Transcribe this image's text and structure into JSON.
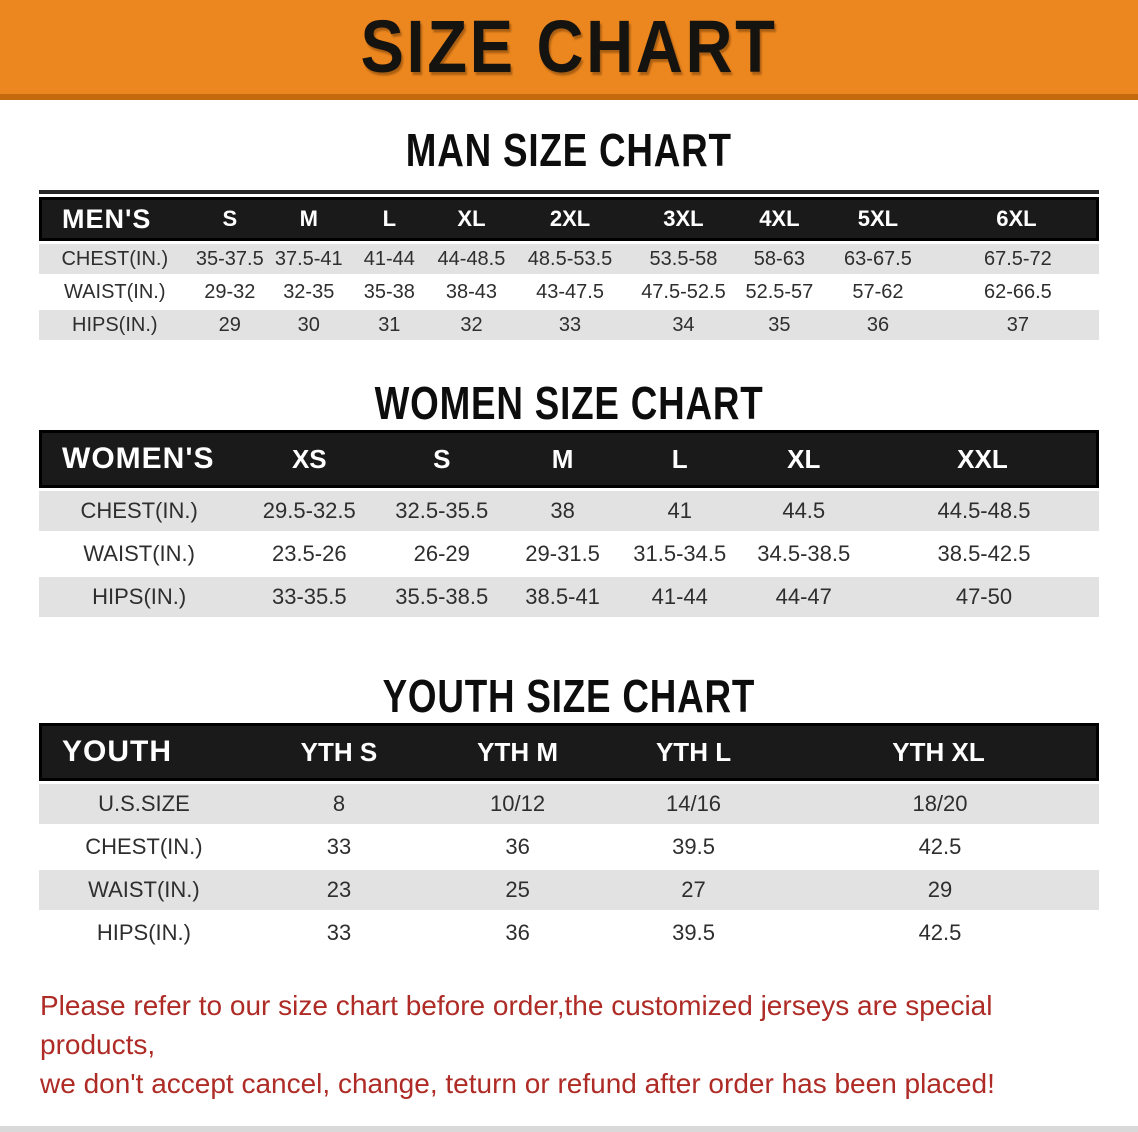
{
  "banner": {
    "title": "SIZE CHART"
  },
  "colors": {
    "banner_orange": "#EC861E",
    "banner_border": "#C4690D",
    "table_header_black": "#1A1A1A",
    "row_stripe_gray": "#E2E2E2",
    "disclaimer_red": "#AE2B26"
  },
  "sections": {
    "men": {
      "heading": "MAN SIZE CHART",
      "table": {
        "header": [
          "MEN'S",
          "S",
          "M",
          "L",
          "XL",
          "2XL",
          "3XL",
          "4XL",
          "5XL",
          "6XL"
        ],
        "rows": [
          {
            "label": "CHEST(IN.)",
            "values": [
              "35-37.5",
              "37.5-41",
              "41-44",
              "44-48.5",
              "48.5-53.5",
              "53.5-58",
              "58-63",
              "63-67.5",
              "67.5-72"
            ]
          },
          {
            "label": "WAIST(IN.)",
            "values": [
              "29-32",
              "32-35",
              "35-38",
              "38-43",
              "43-47.5",
              "47.5-52.5",
              "52.5-57",
              "57-62",
              "62-66.5"
            ]
          },
          {
            "label": "HIPS(IN.)",
            "values": [
              "29",
              "30",
              "31",
              "32",
              "33",
              "34",
              "35",
              "36",
              "37"
            ]
          }
        ]
      }
    },
    "women": {
      "heading": "WOMEN SIZE CHART",
      "table": {
        "header": [
          "WOMEN'S",
          "XS",
          "S",
          "M",
          "L",
          "XL",
          "XXL"
        ],
        "rows": [
          {
            "label": "CHEST(IN.)",
            "values": [
              "29.5-32.5",
              "32.5-35.5",
              "38",
              "41",
              "44.5",
              "44.5-48.5"
            ]
          },
          {
            "label": "WAIST(IN.)",
            "values": [
              "23.5-26",
              "26-29",
              "29-31.5",
              "31.5-34.5",
              "34.5-38.5",
              "38.5-42.5"
            ]
          },
          {
            "label": "HIPS(IN.)",
            "values": [
              "33-35.5",
              "35.5-38.5",
              "38.5-41",
              "41-44",
              "44-47",
              "47-50"
            ]
          }
        ]
      }
    },
    "youth": {
      "heading": "YOUTH SIZE CHART",
      "table": {
        "header": [
          "YOUTH",
          "YTH S",
          "YTH M",
          "YTH L",
          "YTH XL"
        ],
        "rows": [
          {
            "label": "U.S.SIZE",
            "values": [
              "8",
              "10/12",
              "14/16",
              "18/20"
            ]
          },
          {
            "label": "CHEST(IN.)",
            "values": [
              "33",
              "36",
              "39.5",
              "42.5"
            ]
          },
          {
            "label": "WAIST(IN.)",
            "values": [
              "23",
              "25",
              "27",
              "29"
            ]
          },
          {
            "label": "HIPS(IN.)",
            "values": [
              "33",
              "36",
              "39.5",
              "42.5"
            ]
          }
        ]
      }
    }
  },
  "disclaimer": {
    "line1": "Please refer to our size chart before order,the customized jerseys are special products,",
    "line2": "we don't accept cancel, change, teturn or refund after order has been placed!"
  }
}
